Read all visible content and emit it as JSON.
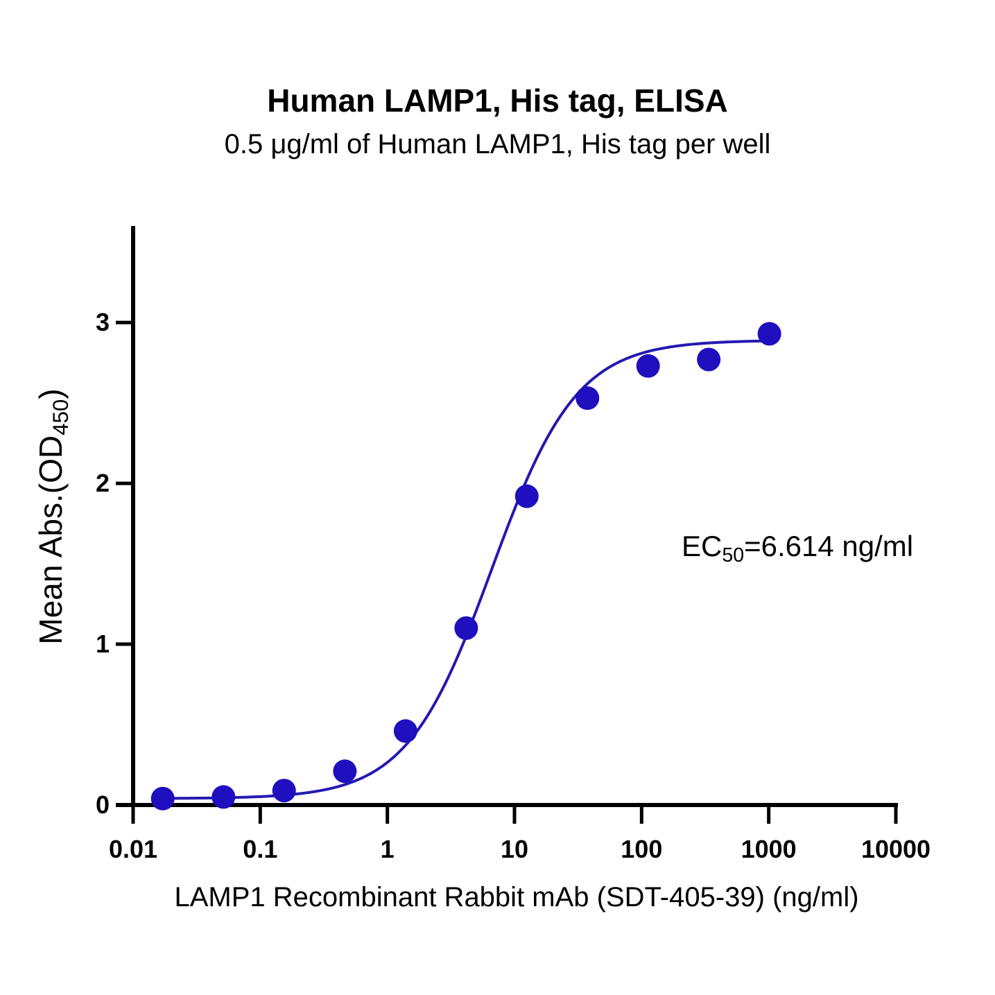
{
  "chart_data": {
    "type": "scatter",
    "title": "Human LAMP1, His tag, ELISA",
    "subtitle": "0.5 μg/ml of Human LAMP1, His tag per well",
    "xlabel": "LAMP1 Recombinant Rabbit mAb (SDT-405-39) (ng/ml)",
    "ylabel": {
      "main": "Mean Abs.(OD",
      "sub": "450",
      "close": ")"
    },
    "xscale": "log",
    "xlim": [
      0.01,
      10000
    ],
    "ylim": [
      0,
      3.6
    ],
    "x_ticks": [
      0.01,
      0.1,
      1,
      10,
      100,
      1000,
      10000
    ],
    "x_tick_labels": [
      "0.01",
      "0.1",
      "1",
      "10",
      "100",
      "1000",
      "10000"
    ],
    "y_ticks": [
      0,
      1,
      2,
      3
    ],
    "y_tick_labels": [
      "0",
      "1",
      "2",
      "3"
    ],
    "series": [
      {
        "name": "LAMP1 Recombinant Rabbit mAb (SDT-405-39)",
        "x": [
          0.0171,
          0.0514,
          0.154,
          0.463,
          1.39,
          4.17,
          12.5,
          37.5,
          112.5,
          337.5,
          1012.5
        ],
        "y": [
          0.04,
          0.05,
          0.09,
          0.21,
          0.46,
          1.1,
          1.92,
          2.53,
          2.73,
          2.77,
          2.93
        ],
        "color": "#1f0fbe"
      }
    ],
    "fit": {
      "model": "4PL",
      "bottom": 0.04,
      "top": 2.89,
      "ec50": 6.614,
      "hill": 1.3,
      "color": "#2419b0"
    },
    "annotation": {
      "prefix": "EC",
      "sub": "50",
      "text": "=6.614 ng/ml"
    },
    "grid": false,
    "legend": "none"
  }
}
